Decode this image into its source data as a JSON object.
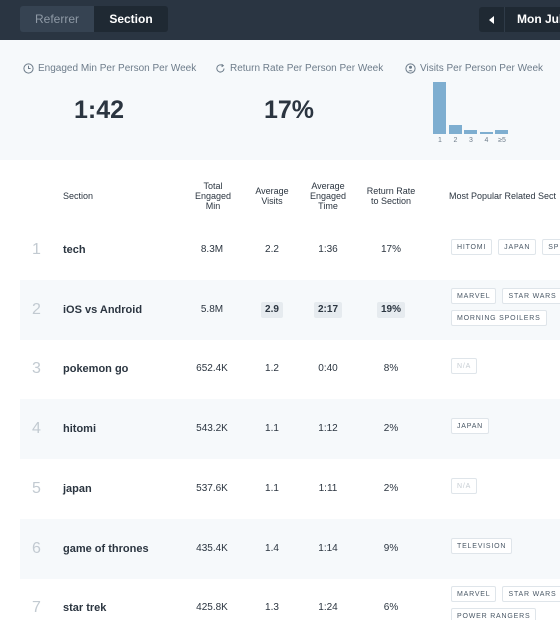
{
  "tabs": {
    "referrer": "Referrer",
    "section": "Section"
  },
  "date_picker": {
    "label": "Mon Jul"
  },
  "stats": {
    "engaged": {
      "label": "Engaged Min Per Person Per Week",
      "value": "1:42",
      "icon": "clock-icon"
    },
    "return": {
      "label": "Return Rate Per Person Per Week",
      "value": "17%",
      "icon": "refresh-icon"
    },
    "visits": {
      "label": "Visits Per Person Per Week",
      "icon": "person-icon",
      "histogram": [
        {
          "label": "1",
          "share": 1.0
        },
        {
          "label": "2",
          "share": 0.17
        },
        {
          "label": "3",
          "share": 0.08
        },
        {
          "label": "4",
          "share": 0.04
        },
        {
          "label": "≥5",
          "share": 0.08
        }
      ]
    }
  },
  "table": {
    "headers": {
      "section": "Section",
      "total": [
        "Total",
        "Engaged",
        "Min"
      ],
      "visits": [
        "Average",
        "Visits"
      ],
      "time": [
        "Average",
        "Engaged",
        "Time"
      ],
      "return": [
        "Return Rate",
        "to Section"
      ],
      "popular": "Most Popular Related Sect"
    },
    "rows": [
      {
        "rank": "1",
        "name": "tech",
        "total": "8.3M",
        "visits": "2.2",
        "time": "1:36",
        "return": "17%",
        "highlight": false,
        "tags": [
          "HITOMI",
          "JAPAN",
          "SP"
        ],
        "na": false
      },
      {
        "rank": "2",
        "name": "iOS vs Android",
        "total": "5.8M",
        "visits": "2.9",
        "time": "2:17",
        "return": "19%",
        "highlight": true,
        "tags": [
          "MARVEL",
          "STAR WARS",
          "MORNING SPOILERS"
        ],
        "na": false
      },
      {
        "rank": "3",
        "name": "pokemon go",
        "total": "652.4K",
        "visits": "1.2",
        "time": "0:40",
        "return": "8%",
        "highlight": false,
        "tags": [
          "N/A"
        ],
        "na": true
      },
      {
        "rank": "4",
        "name": "hitomi",
        "total": "543.2K",
        "visits": "1.1",
        "time": "1:12",
        "return": "2%",
        "highlight": false,
        "tags": [
          "JAPAN"
        ],
        "na": false
      },
      {
        "rank": "5",
        "name": "japan",
        "total": "537.6K",
        "visits": "1.1",
        "time": "1:11",
        "return": "2%",
        "highlight": false,
        "tags": [
          "N/A"
        ],
        "na": true
      },
      {
        "rank": "6",
        "name": "game of thrones",
        "total": "435.4K",
        "visits": "1.4",
        "time": "1:14",
        "return": "9%",
        "highlight": false,
        "tags": [
          "TELEVISION"
        ],
        "na": false
      },
      {
        "rank": "7",
        "name": "star trek",
        "total": "425.8K",
        "visits": "1.3",
        "time": "1:24",
        "return": "6%",
        "highlight": false,
        "tags": [
          "MARVEL",
          "STAR WARS",
          "POWER RANGERS"
        ],
        "na": false
      }
    ]
  },
  "colors": {
    "topbar": "#2a3542",
    "accent_bar": "#7eaed0",
    "row_alt": "#f6f9fb"
  }
}
